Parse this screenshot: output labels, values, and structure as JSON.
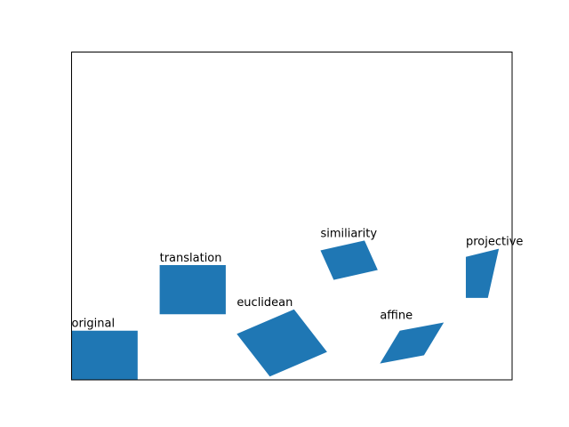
{
  "chart_data": {
    "type": "polygon",
    "title": "",
    "xlabel": "",
    "ylabel": "",
    "grid": false,
    "axes_visible": false,
    "fill_color": "#1f77b4",
    "xlim": [
      0,
      10
    ],
    "ylim": [
      0,
      10
    ],
    "shapes": [
      {
        "label": "original",
        "points": [
          [
            0.0,
            0.0
          ],
          [
            1.5,
            0.0
          ],
          [
            1.5,
            1.5
          ],
          [
            0.0,
            1.5
          ]
        ]
      },
      {
        "label": "translation",
        "points": [
          [
            2.0,
            2.0
          ],
          [
            3.5,
            2.0
          ],
          [
            3.5,
            3.5
          ],
          [
            2.0,
            3.5
          ]
        ]
      },
      {
        "label": "euclidean",
        "points": [
          [
            3.75,
            1.4
          ],
          [
            5.05,
            2.15
          ],
          [
            5.8,
            0.85
          ],
          [
            4.5,
            0.1
          ]
        ]
      },
      {
        "label": "similiarity",
        "points": [
          [
            5.65,
            3.95
          ],
          [
            6.65,
            4.25
          ],
          [
            6.95,
            3.35
          ],
          [
            5.95,
            3.05
          ]
        ]
      },
      {
        "label": "affine",
        "points": [
          [
            7.0,
            0.5
          ],
          [
            8.0,
            0.75
          ],
          [
            8.45,
            1.75
          ],
          [
            7.45,
            1.5
          ]
        ]
      },
      {
        "label": "projective",
        "points": [
          [
            8.95,
            3.75
          ],
          [
            9.7,
            4.0
          ],
          [
            9.45,
            2.5
          ],
          [
            8.95,
            2.5
          ]
        ]
      }
    ]
  }
}
